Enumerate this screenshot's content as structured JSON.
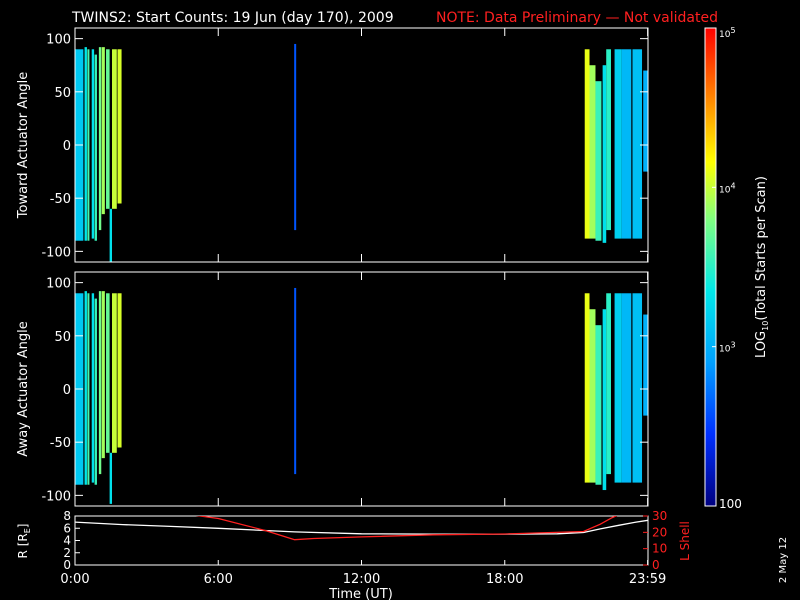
{
  "title": {
    "main": "TWINS2: Start Counts: 19 Jun (day 170), 2009",
    "note": "NOTE: Data Preliminary — Not validated"
  },
  "side_date": "2 May 12",
  "colors": {
    "background": "#000000",
    "axes": "#ffffff",
    "r_line": "#ffffff",
    "lshell_line": "#ff2020",
    "note": "#ff2020"
  },
  "chart_data": [
    {
      "type": "heatmap",
      "name": "toward",
      "ylabel": "Toward Actuator Angle",
      "ylim": [
        -110,
        110
      ],
      "yticks": [
        100,
        50,
        0,
        -50,
        -100
      ],
      "xlim_hours": [
        0,
        24
      ],
      "colorbar_ref": "colorbar",
      "columns": [
        {
          "t0": 0.0,
          "t1": 0.35,
          "ymin": -90,
          "ymax": 90,
          "log": 3.15
        },
        {
          "t0": 0.4,
          "t1": 0.5,
          "ymin": -90,
          "ymax": 92,
          "log": 3.35
        },
        {
          "t0": 0.52,
          "t1": 0.6,
          "ymin": -90,
          "ymax": 90,
          "log": 3.6
        },
        {
          "t0": 0.7,
          "t1": 0.8,
          "ymin": -88,
          "ymax": 90,
          "log": 3.3
        },
        {
          "t0": 0.82,
          "t1": 0.92,
          "ymin": -90,
          "ymax": 85,
          "log": 3.55
        },
        {
          "t0": 1.0,
          "t1": 1.1,
          "ymin": -80,
          "ymax": 92,
          "log": 3.75
        },
        {
          "t0": 1.12,
          "t1": 1.25,
          "ymin": -65,
          "ymax": 92,
          "log": 3.9
        },
        {
          "t0": 1.3,
          "t1": 1.45,
          "ymin": -60,
          "ymax": 90,
          "log": 3.7
        },
        {
          "t0": 1.45,
          "t1": 1.55,
          "ymin": -110,
          "ymax": -60,
          "log": 3.3
        },
        {
          "t0": 1.55,
          "t1": 1.75,
          "ymin": -60,
          "ymax": 90,
          "log": 4.0
        },
        {
          "t0": 1.78,
          "t1": 1.95,
          "ymin": -55,
          "ymax": 90,
          "log": 4.05
        },
        {
          "t0": 9.18,
          "t1": 9.25,
          "ymin": -80,
          "ymax": 95,
          "log": 2.6
        },
        {
          "t0": 21.35,
          "t1": 21.55,
          "ymin": -88,
          "ymax": 90,
          "log": 4.1
        },
        {
          "t0": 21.55,
          "t1": 21.8,
          "ymin": -88,
          "ymax": 75,
          "log": 3.9
        },
        {
          "t0": 21.8,
          "t1": 22.05,
          "ymin": -90,
          "ymax": 60,
          "log": 3.55
        },
        {
          "t0": 22.1,
          "t1": 22.25,
          "ymin": -92,
          "ymax": 75,
          "log": 3.3
        },
        {
          "t0": 22.25,
          "t1": 22.45,
          "ymin": -80,
          "ymax": 90,
          "log": 3.5
        },
        {
          "t0": 22.6,
          "t1": 22.9,
          "ymin": -88,
          "ymax": 90,
          "log": 3.2
        },
        {
          "t0": 22.9,
          "t1": 23.3,
          "ymin": -88,
          "ymax": 90,
          "log": 3.05
        },
        {
          "t0": 23.35,
          "t1": 23.75,
          "ymin": -88,
          "ymax": 90,
          "log": 3.1
        },
        {
          "t0": 23.8,
          "t1": 24.0,
          "ymin": -25,
          "ymax": 70,
          "log": 3.0
        }
      ]
    },
    {
      "type": "heatmap",
      "name": "away",
      "ylabel": "Away Actuator Angle",
      "ylim": [
        -110,
        110
      ],
      "yticks": [
        100,
        50,
        0,
        -50,
        -100
      ],
      "xlim_hours": [
        0,
        24
      ],
      "colorbar_ref": "colorbar",
      "columns": [
        {
          "t0": 0.0,
          "t1": 0.35,
          "ymin": -90,
          "ymax": 90,
          "log": 3.15
        },
        {
          "t0": 0.4,
          "t1": 0.5,
          "ymin": -90,
          "ymax": 92,
          "log": 3.35
        },
        {
          "t0": 0.52,
          "t1": 0.6,
          "ymin": -90,
          "ymax": 90,
          "log": 3.6
        },
        {
          "t0": 0.7,
          "t1": 0.8,
          "ymin": -88,
          "ymax": 90,
          "log": 3.3
        },
        {
          "t0": 0.82,
          "t1": 0.92,
          "ymin": -90,
          "ymax": 85,
          "log": 3.55
        },
        {
          "t0": 1.0,
          "t1": 1.1,
          "ymin": -80,
          "ymax": 92,
          "log": 3.75
        },
        {
          "t0": 1.12,
          "t1": 1.25,
          "ymin": -65,
          "ymax": 92,
          "log": 3.9
        },
        {
          "t0": 1.3,
          "t1": 1.45,
          "ymin": -60,
          "ymax": 90,
          "log": 3.7
        },
        {
          "t0": 1.45,
          "t1": 1.55,
          "ymin": -108,
          "ymax": -60,
          "log": 3.3
        },
        {
          "t0": 1.55,
          "t1": 1.75,
          "ymin": -60,
          "ymax": 90,
          "log": 4.0
        },
        {
          "t0": 1.78,
          "t1": 1.95,
          "ymin": -55,
          "ymax": 90,
          "log": 4.05
        },
        {
          "t0": 9.18,
          "t1": 9.25,
          "ymin": -80,
          "ymax": 95,
          "log": 2.6
        },
        {
          "t0": 21.35,
          "t1": 21.55,
          "ymin": -88,
          "ymax": 90,
          "log": 4.1
        },
        {
          "t0": 21.55,
          "t1": 21.8,
          "ymin": -88,
          "ymax": 75,
          "log": 3.9
        },
        {
          "t0": 21.8,
          "t1": 22.05,
          "ymin": -90,
          "ymax": 60,
          "log": 3.55
        },
        {
          "t0": 22.1,
          "t1": 22.25,
          "ymin": -95,
          "ymax": 75,
          "log": 3.3
        },
        {
          "t0": 22.25,
          "t1": 22.45,
          "ymin": -80,
          "ymax": 90,
          "log": 3.5
        },
        {
          "t0": 22.6,
          "t1": 22.9,
          "ymin": -88,
          "ymax": 90,
          "log": 3.2
        },
        {
          "t0": 22.9,
          "t1": 23.3,
          "ymin": -88,
          "ymax": 90,
          "log": 3.05
        },
        {
          "t0": 23.35,
          "t1": 23.75,
          "ymin": -88,
          "ymax": 90,
          "log": 3.1
        },
        {
          "t0": 23.8,
          "t1": 24.0,
          "ymin": -25,
          "ymax": 70,
          "log": 3.0
        }
      ]
    },
    {
      "type": "line",
      "name": "orbit",
      "xlabel": "Time (UT)",
      "xtick_labels": [
        "0:00",
        "6:00",
        "12:00",
        "18:00",
        "23:59"
      ],
      "xtick_hours": [
        0,
        6,
        12,
        18,
        23.983
      ],
      "xlim_hours": [
        0,
        24
      ],
      "ylabel_left": "R [R",
      "ylabel_left_sub": "E",
      "ylabel_left_end": "]",
      "ylim_left": [
        0,
        8
      ],
      "yticks_left": [
        "8",
        "6",
        "4",
        "2",
        "0"
      ],
      "ylabel_right": "L Shell",
      "ylim_right": [
        0,
        30
      ],
      "yticks_right": [
        "30",
        "20",
        "10",
        "0"
      ],
      "series": [
        {
          "axis": "left",
          "color": "#ffffff",
          "x": [
            0,
            1,
            2,
            4,
            6,
            9.2,
            12,
            15,
            18,
            20.2,
            21.3,
            22,
            22.8,
            23.5,
            24
          ],
          "y": [
            7.0,
            6.8,
            6.6,
            6.3,
            6.0,
            5.4,
            5.1,
            5.05,
            5.05,
            5.1,
            5.3,
            5.9,
            6.5,
            7.0,
            7.3
          ]
        },
        {
          "axis": "right",
          "color": "#ff2020",
          "x": [
            5.0,
            6.0,
            8.0,
            9.2,
            10.0,
            12.0,
            15.0,
            18.0,
            21.3,
            22.0,
            22.5,
            22.8
          ],
          "y": [
            30.5,
            28.5,
            21.0,
            15.5,
            16.2,
            17.2,
            18.5,
            19.0,
            20.5,
            25.0,
            29.0,
            31.0
          ]
        }
      ]
    }
  ],
  "colorbar": {
    "label_prefix": "LOG",
    "label_sub": "10",
    "label_suffix": "(Total Starts per Scan)",
    "log_range": [
      2,
      5
    ],
    "ticks": [
      {
        "log": 5,
        "base": "10",
        "exp": "5"
      },
      {
        "log": 4,
        "base": "10",
        "exp": "4"
      },
      {
        "log": 3,
        "base": "10",
        "exp": "3"
      },
      {
        "log": 2,
        "base": "100",
        "exp": ""
      }
    ]
  }
}
